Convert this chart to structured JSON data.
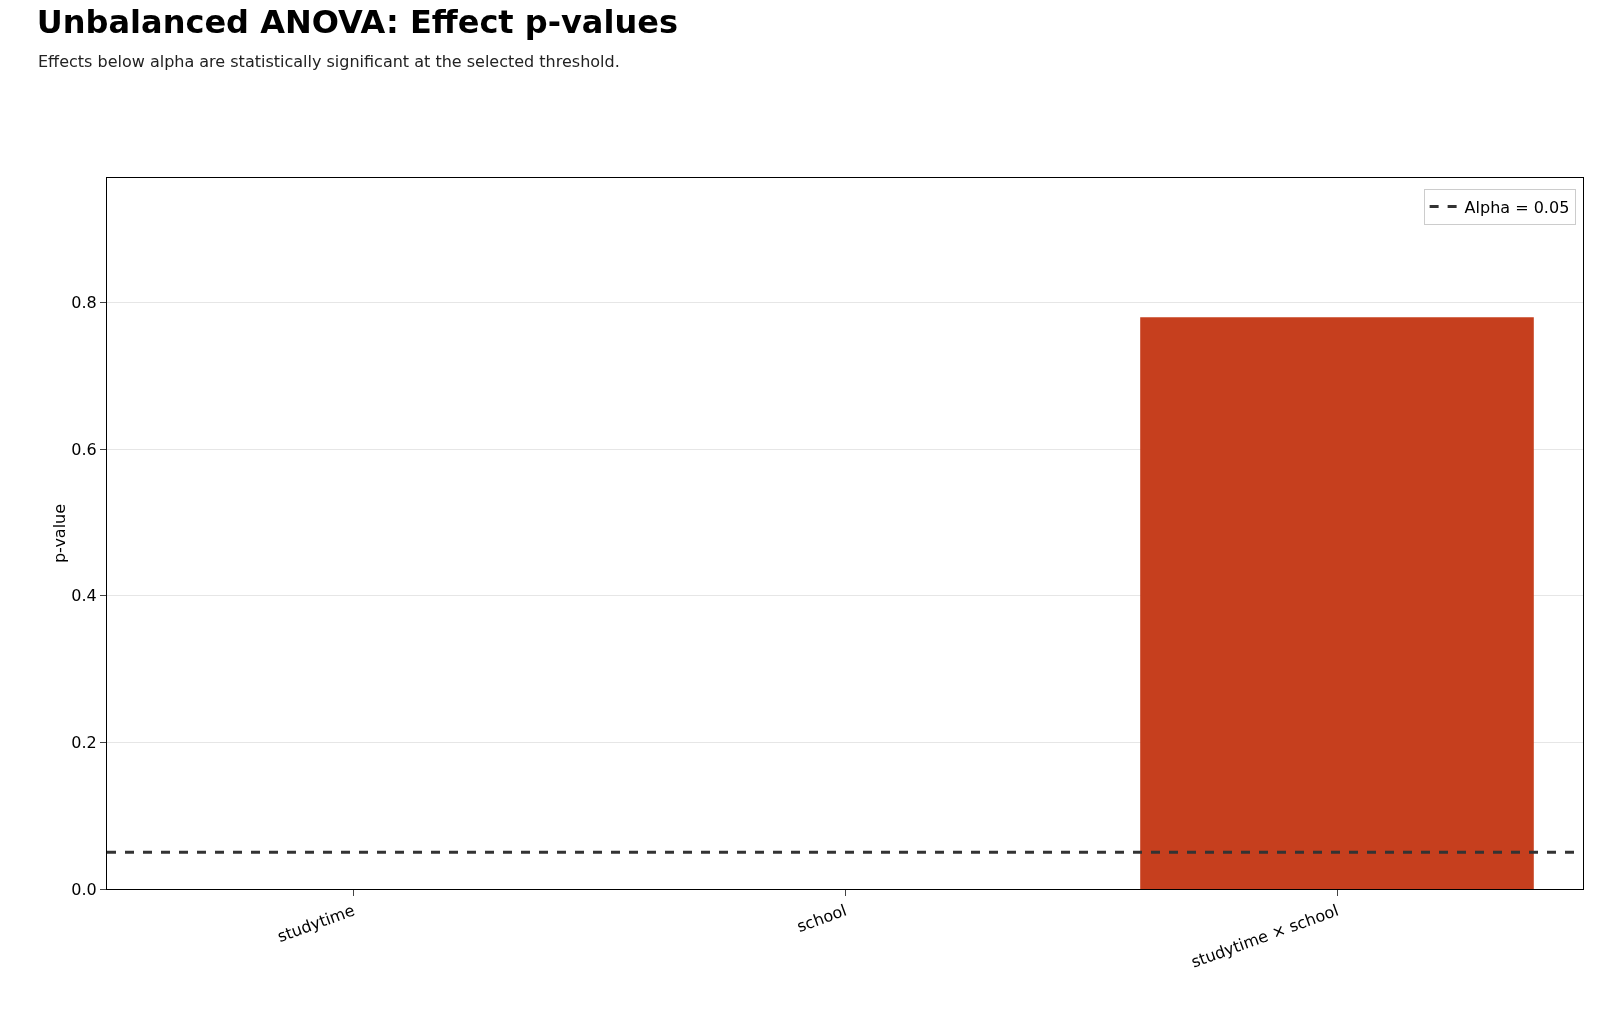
{
  "chart_data": {
    "type": "bar",
    "title": "Unbalanced ANOVA: Effect p-values",
    "subtitle": "Effects below alpha are statistically significant at the selected threshold.",
    "ylabel": "p-value",
    "categories": [
      "studytime",
      "school",
      "studytime × school"
    ],
    "values": [
      0,
      0,
      0.78
    ],
    "color": "#c63f1e",
    "ylim": [
      0,
      0.97
    ],
    "yticks": [
      {
        "value": 0,
        "label": "0.0"
      },
      0.2,
      0.4,
      0.6,
      0.8
    ],
    "grid": "y",
    "legend": "top right",
    "ref_lines": [
      {
        "axis": "y",
        "value": 0.05,
        "label": "Alpha = 0.05",
        "color": "#333333",
        "line_style": "dashed"
      }
    ]
  }
}
